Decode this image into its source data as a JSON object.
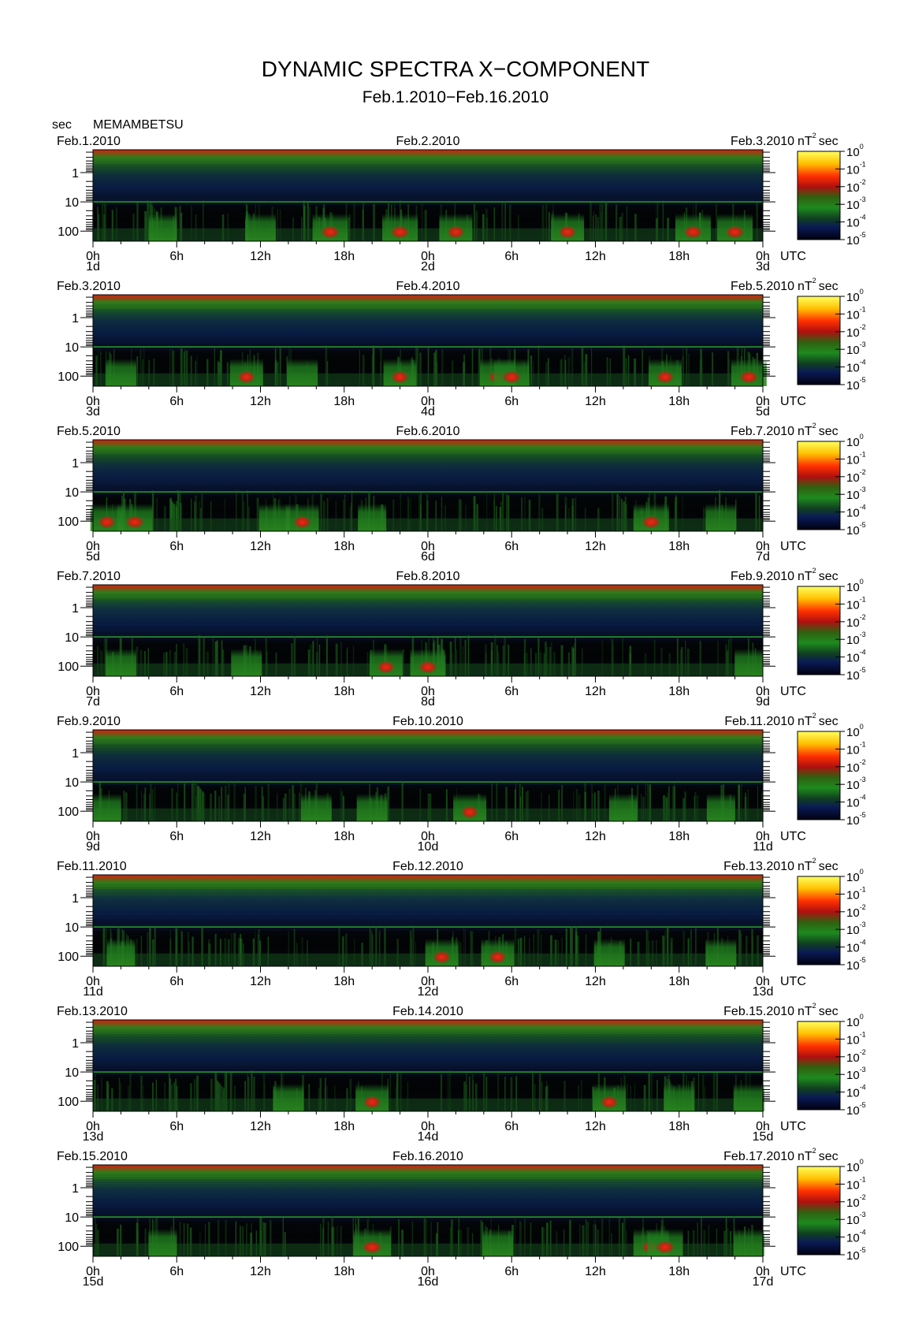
{
  "title": "DYNAMIC SPECTRA X−COMPONENT",
  "subtitle": "Feb.1.2010−Feb.16.2010",
  "y_unit": "sec",
  "station": "MEMAMBETSU",
  "colorbar_unit_main": "nT",
  "colorbar_unit_sup": "2",
  "colorbar_unit_tail": "sec",
  "x_unit": "UTC",
  "colors": {
    "background": "#000000",
    "low": "#0a1445",
    "mid": "#1e7a1e",
    "high": "#e01010",
    "max": "#ffff40"
  },
  "chart_data": {
    "type": "heatmap",
    "y_ticks": [
      "1",
      "10",
      "100"
    ],
    "x_ticks": [
      "0h",
      "6h",
      "12h",
      "18h",
      "0h",
      "6h",
      "12h",
      "18h",
      "0h"
    ],
    "colorbar_exponents": [
      "0",
      "-1",
      "-2",
      "-3",
      "-4",
      "-5"
    ],
    "colorbar_base": "10",
    "panels": [
      {
        "date_left": "Feb.1.2010",
        "date_mid": "Feb.2.2010",
        "date_right": "Feb.3.2010",
        "day_left": "1d",
        "day_mid": "2d",
        "day_right": "3d",
        "events": [
          {
            "t": 5,
            "a": 0.6
          },
          {
            "t": 12,
            "a": 0.7
          },
          {
            "t": 17,
            "a": 0.9
          },
          {
            "t": 22,
            "a": 0.9
          },
          {
            "t": 26,
            "a": 0.8
          },
          {
            "t": 34,
            "a": 0.8
          },
          {
            "t": 43,
            "a": 0.9
          },
          {
            "t": 46,
            "a": 0.9
          }
        ]
      },
      {
        "date_left": "Feb.3.2010",
        "date_mid": "Feb.4.2010",
        "date_right": "Feb.5.2010",
        "day_left": "3d",
        "day_mid": "4d",
        "day_right": "5d",
        "events": [
          {
            "t": 2,
            "a": 0.7
          },
          {
            "t": 11,
            "a": 0.8
          },
          {
            "t": 15,
            "a": 0.7
          },
          {
            "t": 22,
            "a": 0.8
          },
          {
            "t": 29,
            "a": 0.9
          },
          {
            "t": 30,
            "a": 0.9
          },
          {
            "t": 41,
            "a": 0.8
          },
          {
            "t": 47,
            "a": 0.9
          }
        ]
      },
      {
        "date_left": "Feb.5.2010",
        "date_mid": "Feb.6.2010",
        "date_right": "Feb.7.2010",
        "day_left": "5d",
        "day_mid": "6d",
        "day_right": "7d",
        "events": [
          {
            "t": 1,
            "a": 0.8
          },
          {
            "t": 3,
            "a": 0.9
          },
          {
            "t": 13,
            "a": 0.7
          },
          {
            "t": 15,
            "a": 0.8
          },
          {
            "t": 20,
            "a": 0.6
          },
          {
            "t": 40,
            "a": 0.9
          },
          {
            "t": 45,
            "a": 0.7
          }
        ]
      },
      {
        "date_left": "Feb.7.2010",
        "date_mid": "Feb.8.2010",
        "date_right": "Feb.9.2010",
        "day_left": "7d",
        "day_mid": "8d",
        "day_right": "9d",
        "events": [
          {
            "t": 2,
            "a": 0.7
          },
          {
            "t": 11,
            "a": 0.7
          },
          {
            "t": 21,
            "a": 0.8
          },
          {
            "t": 24,
            "a": 0.9
          },
          {
            "t": 47,
            "a": 0.6
          }
        ]
      },
      {
        "date_left": "Feb.9.2010",
        "date_mid": "Feb.10.2010",
        "date_right": "Feb.11.2010",
        "day_left": "9d",
        "day_mid": "10d",
        "day_right": "11d",
        "events": [
          {
            "t": 1,
            "a": 0.6
          },
          {
            "t": 16,
            "a": 0.7
          },
          {
            "t": 20,
            "a": 0.7
          },
          {
            "t": 27,
            "a": 0.8
          },
          {
            "t": 38,
            "a": 0.6
          },
          {
            "t": 45,
            "a": 0.6
          }
        ]
      },
      {
        "date_left": "Feb.11.2010",
        "date_mid": "Feb.12.2010",
        "date_right": "Feb.13.2010",
        "day_left": "11d",
        "day_mid": "12d",
        "day_right": "13d",
        "events": [
          {
            "t": 2,
            "a": 0.6
          },
          {
            "t": 25,
            "a": 0.8
          },
          {
            "t": 29,
            "a": 0.8
          },
          {
            "t": 37,
            "a": 0.7
          },
          {
            "t": 45,
            "a": 0.7
          }
        ]
      },
      {
        "date_left": "Feb.13.2010",
        "date_mid": "Feb.14.2010",
        "date_right": "Feb.15.2010",
        "day_left": "13d",
        "day_mid": "14d",
        "day_right": "15d",
        "events": [
          {
            "t": 14,
            "a": 0.7
          },
          {
            "t": 20,
            "a": 0.8
          },
          {
            "t": 37,
            "a": 0.8
          },
          {
            "t": 42,
            "a": 0.7
          },
          {
            "t": 47,
            "a": 0.7
          }
        ]
      },
      {
        "date_left": "Feb.15.2010",
        "date_mid": "Feb.16.2010",
        "date_right": "Feb.17.2010",
        "day_left": "15d",
        "day_mid": "16d",
        "day_right": "17d",
        "events": [
          {
            "t": 5,
            "a": 0.6
          },
          {
            "t": 20,
            "a": 1.0
          },
          {
            "t": 29,
            "a": 0.7
          },
          {
            "t": 40,
            "a": 0.9
          },
          {
            "t": 41,
            "a": 0.9
          },
          {
            "t": 47,
            "a": 0.7
          }
        ]
      }
    ]
  }
}
